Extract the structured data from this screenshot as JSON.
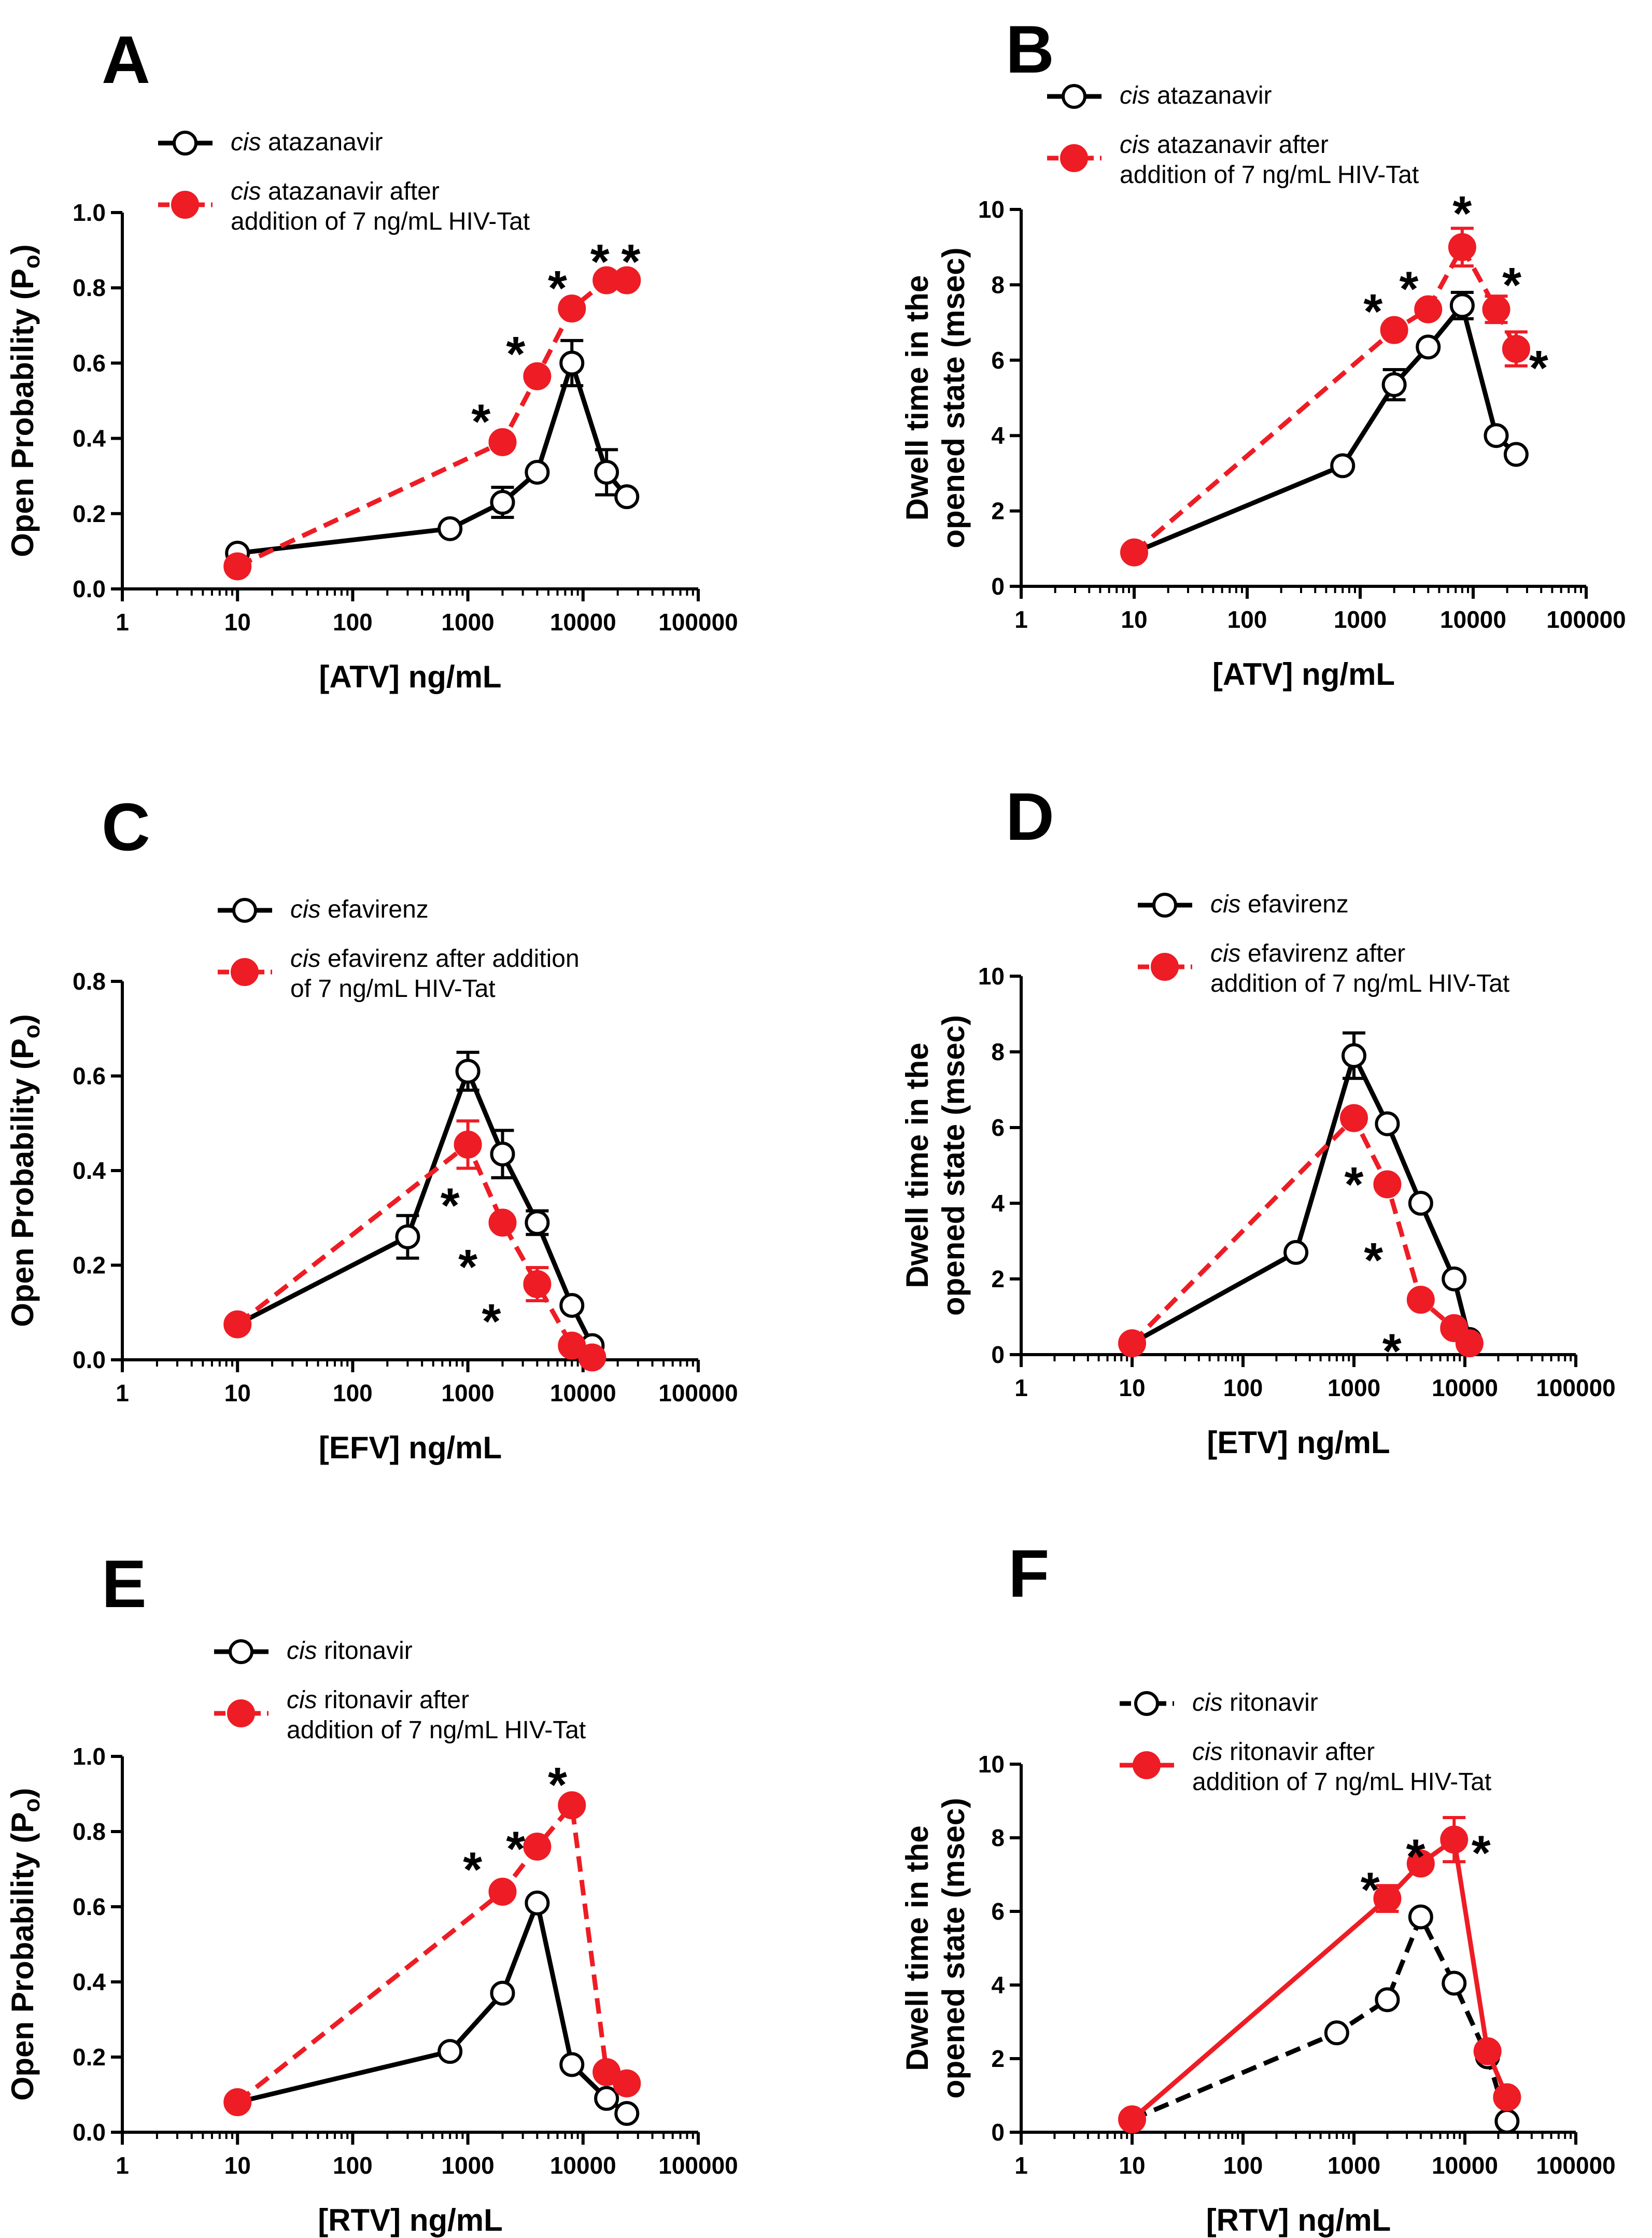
{
  "figure": {
    "panels": [
      "A",
      "B",
      "C",
      "D",
      "E",
      "F"
    ]
  },
  "chart_data": [
    {
      "panel": "A",
      "type": "line",
      "xscale": "log",
      "xlim": [
        1,
        100000
      ],
      "xticks": [
        "1",
        "10",
        "100",
        "1000",
        "10000",
        "100000"
      ],
      "ylim": [
        0,
        1.0
      ],
      "yticks": [
        "0.0",
        "0.2",
        "0.4",
        "0.6",
        "0.8",
        "1.0"
      ],
      "xlabel": "[ATV] ng/mL",
      "ylabel_main": "Open Probability (P",
      "ylabel_sub": "o",
      "ylabel_tail": ")",
      "legend": [
        "atazanavir",
        "atazanavir after",
        "addition of 7 ng/mL  HIV-Tat"
      ],
      "legend_prefix": "cis",
      "legend_placement": "top-left",
      "series": [
        {
          "name": "cis atazanavir",
          "style": "open-black-solid",
          "x": [
            10,
            700,
            2000,
            4000,
            8000,
            16000,
            24000
          ],
          "y": [
            0.095,
            0.16,
            0.23,
            0.31,
            0.6,
            0.31,
            0.245
          ],
          "err": [
            0.015,
            0.015,
            0.04,
            0.03,
            0.06,
            0.06,
            0.03
          ]
        },
        {
          "name": "cis atazanavir after addition of 7 ng/mL HIV-Tat",
          "style": "filled-red-dashed",
          "x": [
            10,
            2000,
            4000,
            8000,
            16000,
            24000
          ],
          "y": [
            0.06,
            0.39,
            0.565,
            0.745,
            0.82,
            0.82
          ],
          "err": [
            0.03,
            0.03,
            0.02,
            0.03,
            0.01,
            0.01
          ]
        }
      ],
      "significance": [
        {
          "label": "*",
          "x": 1300,
          "y": 0.455
        },
        {
          "label": "*",
          "x": 2600,
          "y": 0.635
        },
        {
          "label": "*",
          "x": 6000,
          "y": 0.81
        },
        {
          "label": "*",
          "x": 14000,
          "y": 0.88
        },
        {
          "label": "*",
          "x": 26000,
          "y": 0.88
        }
      ]
    },
    {
      "panel": "B",
      "type": "line",
      "xscale": "log",
      "xlim": [
        1,
        100000
      ],
      "xticks": [
        "1",
        "10",
        "100",
        "1000",
        "10000",
        "100000"
      ],
      "ylim": [
        0,
        10
      ],
      "yticks": [
        "0",
        "2",
        "4",
        "6",
        "8",
        "10"
      ],
      "xlabel": "[ATV] ng/mL",
      "ylabel_lines": [
        "Dwell time in the",
        "opened state (msec)"
      ],
      "legend": [
        "atazanavir",
        "atazanavir after",
        "addition of 7 ng/mL HIV-Tat"
      ],
      "legend_prefix": "cis",
      "legend_placement": "top",
      "series": [
        {
          "name": "cis atazanavir",
          "style": "open-black-solid",
          "x": [
            10,
            700,
            2000,
            4000,
            8000,
            16000,
            24000
          ],
          "y": [
            0.9,
            3.2,
            5.35,
            6.35,
            7.45,
            4.0,
            3.5
          ],
          "err": [
            0.1,
            0.1,
            0.4,
            0.2,
            0.35,
            0.1,
            0.1
          ]
        },
        {
          "name": "cis atazanavir after addition of 7 ng/mL HIV-Tat",
          "style": "filled-red-dashed",
          "x": [
            10,
            2000,
            4000,
            8000,
            16000,
            24000
          ],
          "y": [
            0.9,
            6.8,
            7.35,
            9.0,
            7.35,
            6.3
          ],
          "err": [
            0.1,
            0.15,
            0.15,
            0.5,
            0.35,
            0.45
          ]
        }
      ],
      "significance": [
        {
          "label": "*",
          "x": 1300,
          "y": 7.4
        },
        {
          "label": "*",
          "x": 2700,
          "y": 8.0
        },
        {
          "label": "*",
          "x": 8000,
          "y": 10.0
        },
        {
          "label": "*",
          "x": 22000,
          "y": 8.1
        },
        {
          "label": "*",
          "x": 38000,
          "y": 5.9
        }
      ]
    },
    {
      "panel": "C",
      "type": "line",
      "xscale": "log",
      "xlim": [
        1,
        100000
      ],
      "xticks": [
        "1",
        "10",
        "100",
        "1000",
        "10000",
        "100000"
      ],
      "ylim": [
        0,
        0.8
      ],
      "yticks": [
        "0.0",
        "0.2",
        "0.4",
        "0.6",
        "0.8"
      ],
      "xlabel": "[EFV] ng/mL",
      "ylabel_main": "Open Probability (P",
      "ylabel_sub": "o",
      "ylabel_tail": ")",
      "legend": [
        "efavirenz",
        "efavirenz after addition",
        "of 7 ng/mL HIV-Tat"
      ],
      "legend_prefix": "cis",
      "legend_placement": "top",
      "series": [
        {
          "name": "cis efavirenz",
          "style": "open-black-solid",
          "x": [
            10,
            300,
            1000,
            2000,
            4000,
            8000,
            12000
          ],
          "y": [
            0.075,
            0.26,
            0.61,
            0.435,
            0.29,
            0.115,
            0.03
          ],
          "err": [
            0.01,
            0.045,
            0.04,
            0.05,
            0.025,
            0.01,
            0.01
          ]
        },
        {
          "name": "cis efavirenz after addition of 7 ng/mL HIV-Tat",
          "style": "filled-red-dashed",
          "x": [
            10,
            1000,
            2000,
            4000,
            8000,
            12000
          ],
          "y": [
            0.075,
            0.455,
            0.29,
            0.16,
            0.03,
            0.005
          ],
          "err": [
            0.01,
            0.05,
            0.01,
            0.035,
            0.01,
            0.01
          ]
        }
      ],
      "significance": [
        {
          "label": "*",
          "x": 700,
          "y": 0.335
        },
        {
          "label": "*",
          "x": 1000,
          "y": 0.205
        },
        {
          "label": "*",
          "x": 1600,
          "y": 0.09
        }
      ]
    },
    {
      "panel": "D",
      "type": "line",
      "xscale": "log",
      "xlim": [
        1,
        100000
      ],
      "xticks": [
        "1",
        "10",
        "100",
        "1000",
        "10000",
        "100000"
      ],
      "ylim": [
        0,
        10
      ],
      "yticks": [
        "0",
        "2",
        "4",
        "6",
        "8",
        "10"
      ],
      "xlabel": "[ETV] ng/mL",
      "ylabel_lines": [
        "Dwell time in the",
        "opened state (msec)"
      ],
      "legend": [
        "efavirenz",
        "efavirenz after",
        "addition of 7 ng/mL HIV-Tat"
      ],
      "legend_prefix": "cis",
      "legend_placement": "top",
      "series": [
        {
          "name": "cis efavirenz",
          "style": "open-black-solid",
          "x": [
            10,
            300,
            1000,
            2000,
            4000,
            8000,
            11000
          ],
          "y": [
            0.3,
            2.7,
            7.9,
            6.1,
            4.0,
            2.0,
            0.4
          ],
          "err": [
            0.1,
            0.1,
            0.6,
            0.1,
            0.1,
            0.1,
            0.1
          ]
        },
        {
          "name": "cis efavirenz after addition of 7 ng/mL HIV-Tat",
          "style": "filled-red-dashed",
          "x": [
            10,
            1000,
            2000,
            4000,
            8000,
            11000
          ],
          "y": [
            0.3,
            6.25,
            4.5,
            1.45,
            0.7,
            0.3
          ],
          "err": [
            0.1,
            0.1,
            0.1,
            0.3,
            0.1,
            0.1
          ]
        }
      ],
      "significance": [
        {
          "label": "*",
          "x": 1000,
          "y": 4.6
        },
        {
          "label": "*",
          "x": 1500,
          "y": 2.6
        },
        {
          "label": "*",
          "x": 2200,
          "y": 0.2
        }
      ]
    },
    {
      "panel": "E",
      "type": "line",
      "xscale": "log",
      "xlim": [
        1,
        100000
      ],
      "xticks": [
        "1",
        "10",
        "100",
        "1000",
        "10000",
        "100000"
      ],
      "ylim": [
        0,
        1.0
      ],
      "yticks": [
        "0.0",
        "0.2",
        "0.4",
        "0.6",
        "0.8",
        "1.0"
      ],
      "xlabel": "[RTV] ng/mL",
      "ylabel_main": "Open Probability (P",
      "ylabel_sub": "o",
      "ylabel_tail": ")",
      "legend": [
        "ritonavir",
        "ritonavir after",
        "addition of 7 ng/mL HIV-Tat"
      ],
      "legend_prefix": "cis",
      "legend_placement": "top",
      "series": [
        {
          "name": "cis ritonavir",
          "style": "open-black-solid",
          "x": [
            10,
            700,
            2000,
            4000,
            8000,
            16000,
            24000
          ],
          "y": [
            0.08,
            0.215,
            0.37,
            0.61,
            0.18,
            0.09,
            0.05
          ],
          "err": [
            0.01,
            0.025,
            0.03,
            0.025,
            0.01,
            0.01,
            0.02
          ]
        },
        {
          "name": "cis ritonavir after addition of 7 ng/mL HIV-Tat",
          "style": "filled-red-dashed",
          "x": [
            10,
            2000,
            4000,
            8000,
            16000,
            24000
          ],
          "y": [
            0.08,
            0.64,
            0.76,
            0.87,
            0.16,
            0.13
          ],
          "err": [
            0.01,
            0.03,
            0.03,
            0.01,
            0.01,
            0.01
          ]
        }
      ],
      "significance": [
        {
          "label": "*",
          "x": 1100,
          "y": 0.71
        },
        {
          "label": "*",
          "x": 2600,
          "y": 0.765
        },
        {
          "label": "*",
          "x": 6000,
          "y": 0.935
        }
      ]
    },
    {
      "panel": "F",
      "type": "line",
      "xscale": "log",
      "xlim": [
        1,
        100000
      ],
      "xticks": [
        "1",
        "10",
        "100",
        "1000",
        "10000",
        "100000"
      ],
      "ylim": [
        0,
        10
      ],
      "yticks": [
        "0",
        "2",
        "4",
        "6",
        "8",
        "10"
      ],
      "xlabel": "[RTV] ng/mL",
      "ylabel_lines": [
        "Dwell time in the",
        "opened state (msec)"
      ],
      "legend": [
        "ritonavir",
        "ritonavir after",
        "addition of 7 ng/mL HIV-Tat"
      ],
      "legend_prefix": "cis",
      "legend_placement": "top",
      "series": [
        {
          "name": "cis ritonavir",
          "style": "open-black-dashed",
          "x": [
            10,
            700,
            2000,
            4000,
            8000,
            16000,
            24000
          ],
          "y": [
            0.35,
            2.7,
            3.6,
            5.85,
            4.05,
            2.05,
            0.3
          ],
          "err": [
            0.1,
            0.1,
            0.1,
            0.1,
            0.1,
            0.1,
            0.1
          ]
        },
        {
          "name": "cis ritonavir after addition of 7 ng/mL HIV-Tat",
          "style": "filled-red-solid",
          "x": [
            10,
            2000,
            4000,
            8000,
            16000,
            24000
          ],
          "y": [
            0.35,
            6.35,
            7.3,
            7.95,
            2.2,
            0.95
          ],
          "err": [
            0.1,
            0.35,
            0.1,
            0.6,
            0.1,
            0.1
          ]
        }
      ],
      "significance": [
        {
          "label": "*",
          "x": 1400,
          "y": 6.7
        },
        {
          "label": "*",
          "x": 3600,
          "y": 7.6
        },
        {
          "label": "*",
          "x": 14000,
          "y": 7.7
        }
      ]
    }
  ]
}
